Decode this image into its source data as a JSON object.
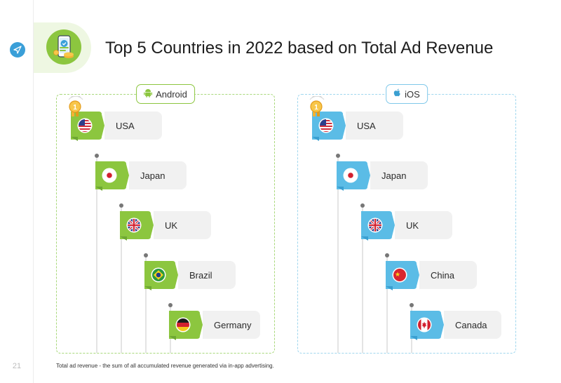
{
  "page": {
    "title": "Top 5 Countries in 2022 based on Total Ad Revenue",
    "page_number": "21",
    "footnote": "Total ad revenue - the sum of all accumulated revenue generated via in-app advertising."
  },
  "colors": {
    "android_flag": "#8cc63f",
    "android_flag_dark": "#6ea832",
    "ios_flag": "#5bbce6",
    "ios_flag_dark": "#3a9fd1",
    "nav_button": "#3a9fd8"
  },
  "icons": {
    "nav": "compass-icon",
    "hero": "phone-revenue-icon",
    "android": "android-icon",
    "ios": "apple-icon",
    "medal": "first-place-medal-icon"
  },
  "panels": {
    "android": {
      "label": "Android",
      "countries": [
        {
          "rank": 1,
          "name": "USA",
          "flag": "us"
        },
        {
          "rank": 2,
          "name": "Japan",
          "flag": "jp"
        },
        {
          "rank": 3,
          "name": "UK",
          "flag": "uk"
        },
        {
          "rank": 4,
          "name": "Brazil",
          "flag": "br"
        },
        {
          "rank": 5,
          "name": "Germany",
          "flag": "de"
        }
      ]
    },
    "ios": {
      "label": "iOS",
      "countries": [
        {
          "rank": 1,
          "name": "USA",
          "flag": "us"
        },
        {
          "rank": 2,
          "name": "Japan",
          "flag": "jp"
        },
        {
          "rank": 3,
          "name": "UK",
          "flag": "uk"
        },
        {
          "rank": 4,
          "name": "China",
          "flag": "cn"
        },
        {
          "rank": 5,
          "name": "Canada",
          "flag": "ca"
        }
      ]
    }
  }
}
